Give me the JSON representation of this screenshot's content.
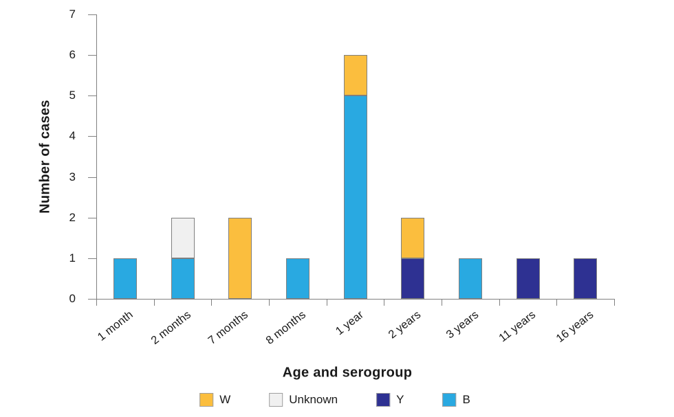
{
  "chart_data": {
    "type": "bar",
    "stacked": true,
    "title": "",
    "xlabel": "Age and serogroup",
    "ylabel": "Number of cases",
    "ylim": [
      0,
      7
    ],
    "yticks": [
      0,
      1,
      2,
      3,
      4,
      5,
      6,
      7
    ],
    "grid": false,
    "legend_position": "bottom",
    "categories": [
      "1 month",
      "2 months",
      "7 months",
      "8 months",
      "1 year",
      "2 years",
      "3 years",
      "11 years",
      "16 years"
    ],
    "series": [
      {
        "name": "B",
        "color": "#29A9E1",
        "values": [
          1,
          1,
          0,
          1,
          5,
          0,
          1,
          0,
          0
        ]
      },
      {
        "name": "Y",
        "color": "#2E3192",
        "values": [
          0,
          0,
          0,
          0,
          0,
          1,
          0,
          1,
          1
        ]
      },
      {
        "name": "Unknown",
        "color": "#F0F0F0",
        "values": [
          0,
          1,
          0,
          0,
          0,
          0,
          0,
          0,
          0
        ]
      },
      {
        "name": "W",
        "color": "#FBBE3E",
        "values": [
          0,
          0,
          2,
          0,
          1,
          1,
          0,
          0,
          0
        ]
      }
    ]
  },
  "legend": {
    "items": [
      {
        "label": "W",
        "color": "#FBBE3E"
      },
      {
        "label": "Unknown",
        "color": "#F0F0F0"
      },
      {
        "label": "Y",
        "color": "#2E3192"
      },
      {
        "label": "B",
        "color": "#29A9E1"
      }
    ]
  }
}
